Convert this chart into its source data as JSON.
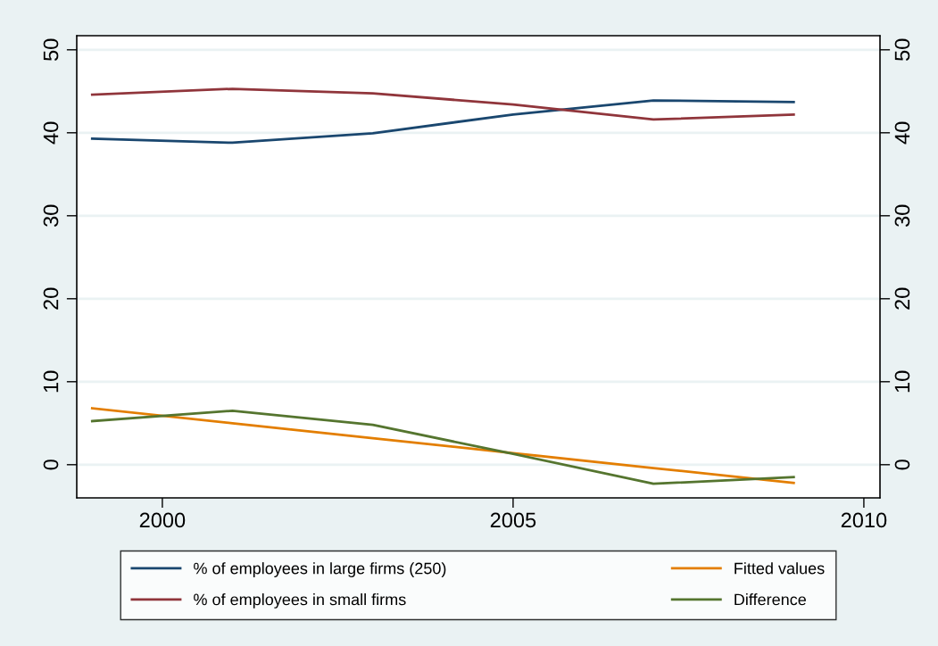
{
  "chart_data": {
    "type": "line",
    "x": [
      1999,
      2001,
      2003,
      2005,
      2007,
      2009
    ],
    "series": [
      {
        "name": "% of employees in large firms (250)",
        "color": "#1a476f",
        "values": [
          39.3,
          38.8,
          39.95,
          42.2,
          43.9,
          43.7
        ]
      },
      {
        "name": "% of employees in small firms",
        "color": "#90353b",
        "values": [
          44.6,
          45.3,
          44.75,
          43.4,
          41.6,
          42.2
        ]
      },
      {
        "name": "Fitted values",
        "color": "#e37e00",
        "values": [
          6.8,
          5.0,
          3.2,
          1.4,
          -0.4,
          -2.2
        ]
      },
      {
        "name": "Difference",
        "color": "#55752f",
        "values": [
          5.25,
          6.5,
          4.8,
          1.3,
          -2.3,
          -1.5
        ]
      }
    ],
    "xlim": [
      1998.78,
      2010.23
    ],
    "xticks": [
      2000,
      2005,
      2010
    ],
    "ylim": [
      -4.0,
      51.7
    ],
    "yticks": [
      0,
      10,
      20,
      30,
      40,
      50
    ],
    "y2lim": [
      -4.0,
      51.7
    ],
    "y2ticks": [
      0,
      10,
      20,
      30,
      40,
      50
    ],
    "grid": "y",
    "legend": "bottom",
    "marker": "none",
    "line_style": "solid"
  }
}
